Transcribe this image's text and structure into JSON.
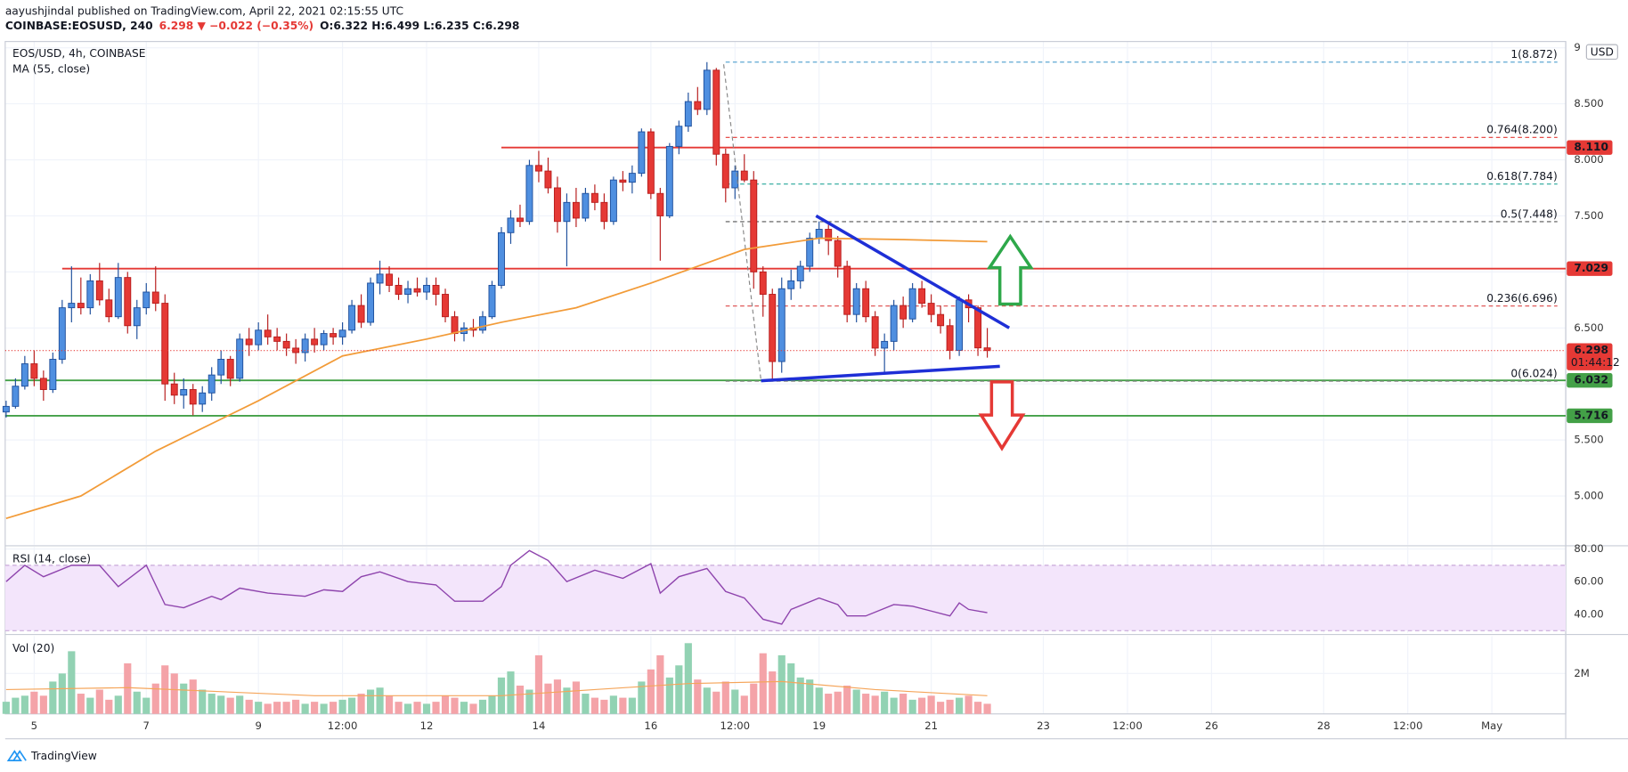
{
  "header": {
    "author": "aayushjindal published on TradingView.com, April 22, 2021 02:15:55 UTC",
    "symbol": "COINBASE:EOSUSD, 240",
    "change": "6.298 ▼ −0.022 (−0.35%)",
    "ohlc": "O:6.322 H:6.499 L:6.235 C:6.298"
  },
  "footer": "TradingView",
  "chart_data": [
    {
      "type": "candlestick",
      "title": "EOS/USD, 4h, COINBASE",
      "currency": "USD",
      "up_color": "#4f8fe0",
      "up_edge": "#1e4f9c",
      "down_color": "#e53935",
      "down_edge": "#b71c1c",
      "grid": true,
      "x": [
        -3,
        -2,
        -1,
        0,
        1,
        2,
        3,
        4,
        5,
        6,
        7,
        8,
        9,
        10,
        11,
        12,
        13,
        14,
        15,
        16,
        17,
        18,
        19,
        20,
        21,
        22,
        23,
        24,
        25,
        26,
        27,
        28,
        29,
        30,
        31,
        32,
        33,
        34,
        35,
        36,
        37,
        38,
        39,
        40,
        41,
        42,
        43,
        44,
        45,
        46,
        47,
        48,
        49,
        50,
        51,
        52,
        53,
        54,
        55,
        56,
        57,
        58,
        59,
        60,
        61,
        62,
        63,
        64,
        65,
        66,
        67,
        68,
        69,
        70,
        71,
        72,
        73,
        74,
        75,
        76,
        77,
        78,
        79,
        80,
        81,
        82,
        83,
        84,
        85,
        86,
        87,
        88,
        89,
        90,
        91,
        92,
        93,
        94,
        95,
        96,
        97,
        98,
        99,
        100,
        101,
        102
      ],
      "open": [
        5.75,
        5.8,
        5.98,
        6.18,
        6.05,
        5.95,
        6.22,
        6.68,
        6.72,
        6.68,
        6.92,
        6.75,
        6.6,
        6.95,
        6.52,
        6.68,
        6.82,
        6.72,
        6.0,
        5.9,
        5.95,
        5.82,
        5.92,
        6.08,
        6.22,
        6.05,
        6.4,
        6.35,
        6.48,
        6.42,
        6.38,
        6.32,
        6.28,
        6.4,
        6.35,
        6.45,
        6.42,
        6.48,
        6.7,
        6.55,
        6.9,
        6.98,
        6.88,
        6.8,
        6.85,
        6.82,
        6.88,
        6.8,
        6.6,
        6.45,
        6.5,
        6.48,
        6.6,
        6.88,
        7.35,
        7.48,
        7.45,
        7.95,
        7.9,
        7.75,
        7.45,
        7.62,
        7.48,
        7.7,
        7.62,
        7.45,
        7.82,
        7.8,
        7.88,
        8.25,
        7.7,
        7.5,
        8.12,
        8.3,
        8.52,
        8.45,
        8.8,
        8.05,
        7.75,
        7.9,
        7.82,
        7.0,
        6.8,
        6.2,
        6.85,
        6.92,
        7.05,
        7.3,
        7.38,
        7.28,
        7.05,
        6.62,
        6.85,
        6.6,
        6.32,
        6.38,
        6.7,
        6.58,
        6.85,
        6.72,
        6.62,
        6.52,
        6.3,
        6.75,
        6.68,
        6.322
      ],
      "high": [
        5.85,
        6.05,
        6.25,
        6.3,
        6.12,
        6.28,
        6.75,
        7.05,
        6.95,
        6.98,
        7.08,
        6.85,
        7.08,
        7.0,
        6.75,
        6.9,
        7.05,
        6.8,
        6.1,
        6.05,
        6.0,
        5.98,
        6.15,
        6.3,
        6.25,
        6.45,
        6.5,
        6.55,
        6.62,
        6.5,
        6.45,
        6.4,
        6.45,
        6.5,
        6.48,
        6.5,
        6.55,
        6.75,
        6.8,
        6.95,
        7.1,
        7.05,
        6.95,
        6.92,
        6.95,
        6.95,
        6.95,
        6.85,
        6.65,
        6.55,
        6.58,
        6.65,
        6.92,
        7.4,
        7.55,
        7.6,
        8.0,
        8.08,
        8.02,
        7.85,
        7.7,
        7.75,
        7.75,
        7.78,
        7.7,
        7.85,
        7.9,
        7.95,
        8.28,
        8.28,
        7.75,
        8.15,
        8.35,
        8.6,
        8.65,
        8.872,
        8.82,
        8.1,
        7.95,
        8.05,
        7.9,
        7.05,
        6.85,
        6.95,
        7.02,
        7.1,
        7.35,
        7.45,
        7.42,
        7.32,
        7.1,
        6.9,
        6.92,
        6.65,
        6.45,
        6.75,
        6.78,
        6.9,
        6.92,
        6.8,
        6.7,
        6.58,
        6.78,
        6.8,
        6.7,
        6.499
      ],
      "low": [
        5.7,
        5.78,
        5.95,
        5.98,
        5.85,
        5.92,
        6.18,
        6.55,
        6.62,
        6.62,
        6.7,
        6.55,
        6.58,
        6.45,
        6.4,
        6.62,
        6.65,
        5.85,
        5.82,
        5.78,
        5.72,
        5.75,
        5.85,
        6.0,
        5.98,
        6.02,
        6.25,
        6.3,
        6.35,
        6.3,
        6.25,
        6.18,
        6.2,
        6.28,
        6.3,
        6.35,
        6.35,
        6.45,
        6.5,
        6.52,
        6.8,
        6.82,
        6.75,
        6.72,
        6.78,
        6.75,
        6.7,
        6.55,
        6.38,
        6.38,
        6.42,
        6.45,
        6.58,
        6.85,
        7.25,
        7.4,
        7.42,
        7.8,
        7.7,
        7.35,
        7.05,
        7.4,
        7.45,
        7.55,
        7.38,
        7.42,
        7.72,
        7.7,
        7.85,
        7.65,
        7.1,
        7.48,
        8.05,
        8.25,
        8.4,
        8.4,
        7.95,
        7.62,
        7.65,
        7.8,
        6.85,
        6.6,
        6.024,
        6.1,
        6.75,
        6.85,
        7.0,
        7.25,
        7.15,
        6.95,
        6.55,
        6.55,
        6.55,
        6.25,
        6.1,
        6.3,
        6.5,
        6.55,
        6.68,
        6.55,
        6.45,
        6.22,
        6.25,
        6.55,
        6.25,
        6.235
      ],
      "close": [
        5.8,
        5.98,
        6.18,
        6.05,
        5.95,
        6.22,
        6.68,
        6.72,
        6.68,
        6.92,
        6.75,
        6.6,
        6.95,
        6.52,
        6.68,
        6.82,
        6.72,
        6.0,
        5.9,
        5.95,
        5.82,
        5.92,
        6.08,
        6.22,
        6.05,
        6.4,
        6.35,
        6.48,
        6.42,
        6.38,
        6.32,
        6.28,
        6.4,
        6.35,
        6.45,
        6.42,
        6.48,
        6.7,
        6.55,
        6.9,
        6.98,
        6.88,
        6.8,
        6.85,
        6.82,
        6.88,
        6.8,
        6.6,
        6.45,
        6.5,
        6.48,
        6.6,
        6.88,
        7.35,
        7.48,
        7.45,
        7.95,
        7.9,
        7.75,
        7.45,
        7.62,
        7.48,
        7.7,
        7.62,
        7.45,
        7.82,
        7.8,
        7.88,
        8.25,
        7.7,
        7.5,
        8.12,
        8.3,
        8.52,
        8.45,
        8.8,
        8.05,
        7.75,
        7.9,
        7.82,
        7.0,
        6.8,
        6.2,
        6.85,
        6.92,
        7.05,
        7.3,
        7.38,
        7.28,
        7.05,
        6.62,
        6.85,
        6.6,
        6.32,
        6.38,
        6.7,
        6.58,
        6.85,
        6.72,
        6.62,
        6.52,
        6.3,
        6.75,
        6.68,
        6.322,
        6.298
      ],
      "ma": {
        "name": "MA (55, close)",
        "color": "#f29b38",
        "x": [
          -3,
          5,
          13,
          24,
          33,
          42,
          50,
          58,
          66,
          72,
          76,
          84,
          92,
          102
        ],
        "values": [
          4.8,
          5.0,
          5.4,
          5.85,
          6.25,
          6.4,
          6.55,
          6.68,
          6.9,
          7.08,
          7.2,
          7.3,
          7.29,
          7.27
        ]
      },
      "levels": [
        {
          "value": 8.11,
          "label": "8.110",
          "color": "#e53935",
          "x_start": 50
        },
        {
          "value": 7.029,
          "label": "7.029",
          "color": "#e53935",
          "x_start": 3
        },
        {
          "value": 6.032,
          "label": "6.032",
          "color": "#43a047"
        },
        {
          "value": 5.716,
          "label": "5.716",
          "color": "#43a047"
        }
      ],
      "fib": [
        {
          "value": 8.872,
          "label": "1(8.872)",
          "color": "#5fa8d3",
          "x_start": 74
        },
        {
          "value": 8.2,
          "label": "0.764(8.200)",
          "color": "#e53935",
          "x_start": 74
        },
        {
          "value": 7.784,
          "label": "0.618(7.784)",
          "color": "#26a69a",
          "x_start": 74
        },
        {
          "value": 7.448,
          "label": "0.5(7.448)",
          "color": "#555555",
          "x_start": 74
        },
        {
          "value": 6.696,
          "label": "0.236(6.696)",
          "color": "#e05a5a",
          "x_start": 74
        },
        {
          "value": 6.024,
          "label": "0(6.024)",
          "color": "#888888",
          "x_start": 74
        }
      ],
      "price_label": {
        "value": 6.298,
        "label": "6.298",
        "countdown": "01:44:12",
        "color": "#e53935"
      },
      "xlim": [
        -3.1,
        163.9
      ],
      "xticks": [
        {
          "value": 0,
          "label": "5"
        },
        {
          "value": 12,
          "label": "7"
        },
        {
          "value": 24,
          "label": "9"
        },
        {
          "value": 33,
          "label": "12:00"
        },
        {
          "value": 42,
          "label": "12"
        },
        {
          "value": 54,
          "label": "14"
        },
        {
          "value": 66,
          "label": "16"
        },
        {
          "value": 75,
          "label": "12:00"
        },
        {
          "value": 84,
          "label": "19"
        },
        {
          "value": 96,
          "label": "21"
        },
        {
          "value": 108,
          "label": "23"
        },
        {
          "value": 117,
          "label": "12:00"
        },
        {
          "value": 126,
          "label": "26"
        },
        {
          "value": 138,
          "label": "28"
        },
        {
          "value": 147,
          "label": "12:00"
        },
        {
          "value": 156,
          "label": "May"
        }
      ],
      "ylim": [
        4.565,
        9.056
      ],
      "yticks": [
        {
          "value": 5,
          "label": "5.000"
        },
        {
          "value": 5.5,
          "label": "5.500"
        },
        {
          "value": 6,
          "label": "6.000"
        },
        {
          "value": 6.5,
          "label": "6.500"
        },
        {
          "value": 7,
          "label": "7.000"
        },
        {
          "value": 7.5,
          "label": "7.500"
        },
        {
          "value": 8,
          "label": "8.000"
        },
        {
          "value": 8.5,
          "label": "8.500"
        },
        9
      ]
    },
    {
      "type": "line",
      "title": "RSI (14, close)",
      "color": "#8e44ad",
      "band": [
        30,
        70
      ],
      "band_color": "#f3e5fb",
      "grid": true,
      "x": [
        -3,
        -1,
        1,
        4,
        7,
        9,
        12,
        14,
        16,
        19,
        20,
        22,
        25,
        29,
        31,
        33,
        35,
        37,
        40,
        43,
        45,
        48,
        50,
        51,
        53,
        55,
        57,
        60,
        63,
        66,
        67,
        69,
        72,
        74,
        76,
        78,
        80,
        81,
        84,
        86,
        87,
        89,
        92,
        94,
        96,
        98,
        99,
        100,
        102
      ],
      "values": [
        60,
        70,
        63,
        70,
        70,
        57,
        70,
        46,
        44,
        51,
        49,
        56,
        53,
        51,
        55,
        54,
        63,
        66,
        60,
        58,
        48,
        48,
        57,
        70,
        79,
        73,
        60,
        67,
        62,
        71,
        53,
        63,
        68,
        54,
        50,
        37,
        34,
        43,
        50,
        46,
        39,
        39,
        46,
        45,
        42,
        39,
        47,
        43,
        41
      ],
      "ylim": [
        28.6,
        81.3
      ],
      "yticks": [
        {
          "value": 40,
          "label": "40.00"
        },
        {
          "value": 60,
          "label": "60.00"
        },
        {
          "value": 80,
          "label": "80.00"
        }
      ]
    },
    {
      "type": "bar",
      "title": "Vol (20)",
      "up_color": "#92d2b3",
      "down_color": "#f4a3a8",
      "grid": true,
      "values": [
        600000.0,
        800000.0,
        900000.0,
        1100000.0,
        900000.0,
        1600000.0,
        2000000.0,
        3100000.0,
        1000000.0,
        800000.0,
        1200000.0,
        700000.0,
        900000.0,
        2500000.0,
        1100000.0,
        800000.0,
        1500000.0,
        2400000.0,
        2000000.0,
        1500000.0,
        1700000.0,
        1200000.0,
        1000000.0,
        900000.0,
        800000.0,
        900000.0,
        700000.0,
        600000.0,
        500000.0,
        600000.0,
        600000.0,
        700000.0,
        500000.0,
        600000.0,
        500000.0,
        600000.0,
        700000.0,
        800000.0,
        1000000.0,
        1200000.0,
        1300000.0,
        900000.0,
        600000.0,
        500000.0,
        600000.0,
        500000.0,
        600000.0,
        900000.0,
        800000.0,
        600000.0,
        500000.0,
        700000.0,
        900000.0,
        1800000.0,
        2100000.0,
        1400000.0,
        1200000.0,
        2900000.0,
        1500000.0,
        1700000.0,
        1300000.0,
        1600000.0,
        1000000.0,
        800000.0,
        700000.0,
        900000.0,
        800000.0,
        800000.0,
        1600000.0,
        2200000.0,
        2900000.0,
        1800000.0,
        2400000.0,
        3500000.0,
        1700000.0,
        1300000.0,
        1100000.0,
        1600000.0,
        1200000.0,
        900000.0,
        1500000.0,
        3000000.0,
        2100000.0,
        2900000.0,
        2500000.0,
        1800000.0,
        1700000.0,
        1300000.0,
        1000000.0,
        1100000.0,
        1400000.0,
        1200000.0,
        1000000.0,
        900000.0,
        1100000.0,
        800000.0,
        1000000.0,
        700000.0,
        800000.0,
        900000.0,
        600000.0,
        700000.0,
        800000.0,
        900000.0,
        600000.0,
        500000.0
      ],
      "ma": {
        "color": "#f5a55a",
        "x": [
          -3,
          10,
          30,
          50,
          60,
          70,
          80,
          90,
          102
        ],
        "values": [
          1200000.0,
          1300000.0,
          900000.0,
          900000.0,
          1200000.0,
          1500000.0,
          1600000.0,
          1200000.0,
          900000.0
        ]
      },
      "ylim": [
        0,
        3850000.0
      ],
      "yticks": [
        {
          "value": 2000000,
          "label": "2M"
        }
      ]
    }
  ]
}
